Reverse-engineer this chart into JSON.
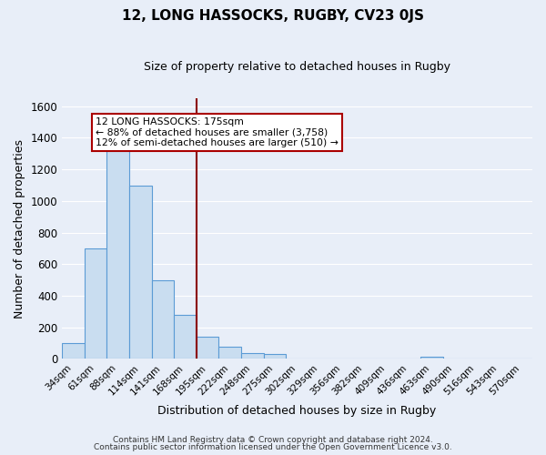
{
  "title": "12, LONG HASSOCKS, RUGBY, CV23 0JS",
  "subtitle": "Size of property relative to detached houses in Rugby",
  "xlabel": "Distribution of detached houses by size in Rugby",
  "ylabel": "Number of detached properties",
  "bar_labels": [
    "34sqm",
    "61sqm",
    "88sqm",
    "114sqm",
    "141sqm",
    "168sqm",
    "195sqm",
    "222sqm",
    "248sqm",
    "275sqm",
    "302sqm",
    "329sqm",
    "356sqm",
    "382sqm",
    "409sqm",
    "436sqm",
    "463sqm",
    "490sqm",
    "516sqm",
    "543sqm",
    "570sqm"
  ],
  "bar_values": [
    100,
    700,
    1330,
    1100,
    500,
    280,
    140,
    80,
    35,
    30,
    0,
    0,
    0,
    0,
    0,
    0,
    15,
    0,
    0,
    0,
    0
  ],
  "bar_color": "#c9ddf0",
  "bar_edge_color": "#5b9bd5",
  "vline_x": 5.5,
  "vline_color": "#8b0000",
  "ylim": [
    0,
    1650
  ],
  "yticks": [
    0,
    200,
    400,
    600,
    800,
    1000,
    1200,
    1400,
    1600
  ],
  "annotation_title": "12 LONG HASSOCKS: 175sqm",
  "annotation_line1": "← 88% of detached houses are smaller (3,758)",
  "annotation_line2": "12% of semi-detached houses are larger (510) →",
  "annotation_box_color": "#ffffff",
  "annotation_box_edge": "#aa0000",
  "footer1": "Contains HM Land Registry data © Crown copyright and database right 2024.",
  "footer2": "Contains public sector information licensed under the Open Government Licence v3.0.",
  "bg_color": "#e8eef8",
  "plot_bg_color": "#e8eef8",
  "grid_color": "#ffffff",
  "title_fontsize": 11,
  "subtitle_fontsize": 9
}
